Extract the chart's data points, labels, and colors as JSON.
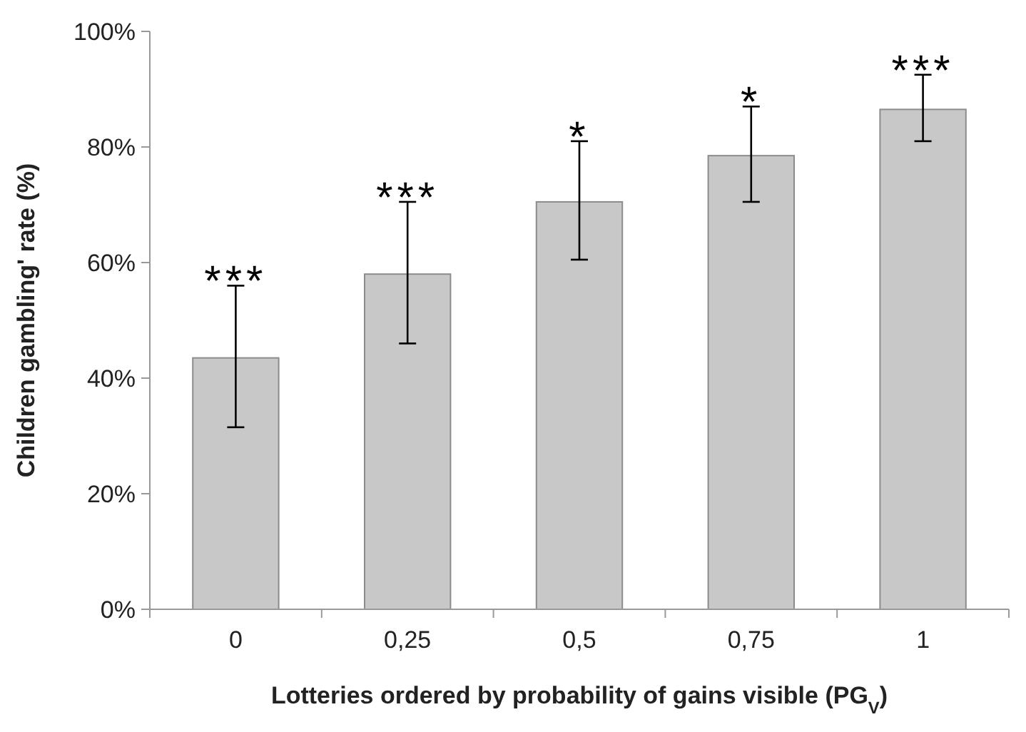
{
  "chart_data": {
    "type": "bar",
    "xlabel": "Lotteries ordered by probability of gains visible (PG$_{V}$)",
    "ylabel": "Children gambling' rate (%)",
    "categories": [
      "0",
      "0,25",
      "0,5",
      "0,75",
      "1"
    ],
    "values": [
      43.5,
      58,
      70.5,
      78.5,
      86.5
    ],
    "errors": [
      [
        31.5,
        56
      ],
      [
        46,
        70.5
      ],
      [
        60.5,
        81
      ],
      [
        70.5,
        87
      ],
      [
        81,
        92.5
      ]
    ],
    "color": "#c8c8c8",
    "ylim": [
      0,
      100
    ],
    "yticks": [
      {
        "value": 0,
        "label": "0%"
      },
      {
        "value": 20,
        "label": "20%"
      },
      {
        "value": 40,
        "label": "40%"
      },
      {
        "value": 60,
        "label": "60%"
      },
      {
        "value": 80,
        "label": "80%"
      },
      {
        "value": 100,
        "label": "100%"
      }
    ],
    "annotations": [
      {
        "text": "***",
        "x": "0",
        "y": 56
      },
      {
        "text": "***",
        "x": "0,25",
        "y": 70.5
      },
      {
        "text": "*",
        "x": "0,5",
        "y": 81
      },
      {
        "text": "*",
        "x": "0,75",
        "y": 87
      },
      {
        "text": "***",
        "x": "1",
        "y": 92.5
      }
    ],
    "grid": false
  }
}
